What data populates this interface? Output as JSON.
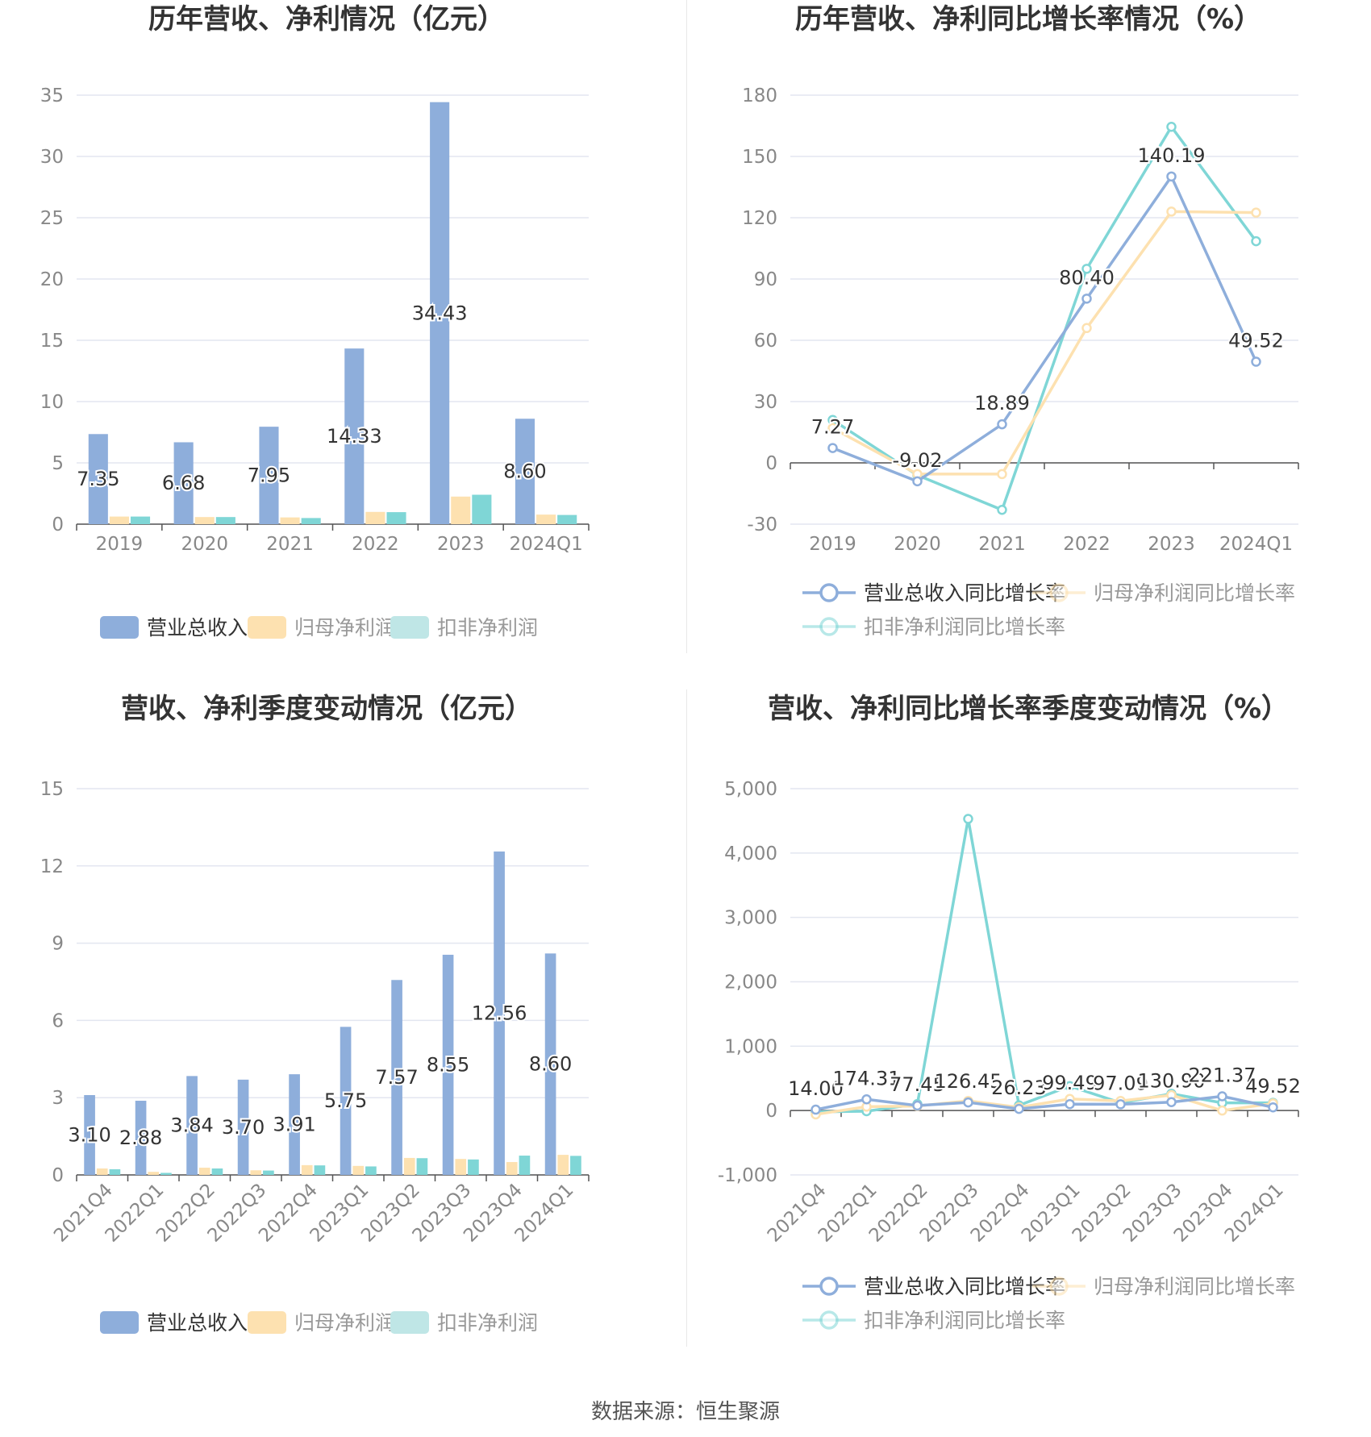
{
  "colors": {
    "revenue": "#8eaedb",
    "net_profit": "#fde1b0",
    "deducted": "#7fd6d6",
    "revenue_legend": "#8eaedb",
    "net_profit_legend": "#fde1b0",
    "deducted_legend": "#bfe6e6",
    "grid": "#e3e6f0",
    "axis": "#555555",
    "tick": "#888888",
    "label": "#333333"
  },
  "source": "数据来源：恒生聚源",
  "chart_data": [
    {
      "id": "annual_amount",
      "type": "bar",
      "title": "历年营收、净利情况（亿元）",
      "categories": [
        "2019",
        "2020",
        "2021",
        "2022",
        "2023",
        "2024Q1"
      ],
      "series": [
        {
          "name": "营业总收入",
          "values": [
            7.35,
            6.68,
            7.95,
            14.33,
            34.43,
            8.6
          ],
          "labels": [
            "7.35",
            "6.68",
            "7.95",
            "14.33",
            "34.43",
            "8.60"
          ]
        },
        {
          "name": "归母净利润",
          "values": [
            0.62,
            0.58,
            0.55,
            1.0,
            2.25,
            0.78
          ]
        },
        {
          "name": "扣非净利润",
          "values": [
            0.62,
            0.58,
            0.5,
            0.98,
            2.4,
            0.75
          ]
        }
      ],
      "ylim": [
        0,
        35
      ],
      "yticks": [
        "0",
        "5",
        "10",
        "15",
        "20",
        "25",
        "30",
        "35"
      ],
      "legend": "bottom",
      "grid": true
    },
    {
      "id": "annual_growth",
      "type": "line",
      "title": "历年营收、净利同比增长率情况（%）",
      "categories": [
        "2019",
        "2020",
        "2021",
        "2022",
        "2023",
        "2024Q1"
      ],
      "series": [
        {
          "name": "营业总收入同比增长率",
          "values": [
            7.27,
            -9.02,
            18.89,
            80.4,
            140.19,
            49.52
          ],
          "labels": [
            "7.27",
            "-9.02",
            "18.89",
            "80.40",
            "140.19",
            "49.52"
          ]
        },
        {
          "name": "归母净利润同比增长率",
          "values": [
            17,
            -5.5,
            -5.5,
            66,
            123,
            122.5
          ]
        },
        {
          "name": "扣非净利润同比增长率",
          "values": [
            21,
            -6,
            -23,
            95,
            164.5,
            108.5
          ]
        }
      ],
      "ylim": [
        -30,
        180
      ],
      "yticks": [
        "-30",
        "0",
        "30",
        "60",
        "90",
        "120",
        "150",
        "180"
      ],
      "legend": "bottom",
      "grid": true
    },
    {
      "id": "quarterly_amount",
      "type": "bar",
      "title": "营收、净利季度变动情况（亿元）",
      "categories": [
        "2021Q4",
        "2022Q1",
        "2022Q2",
        "2022Q3",
        "2022Q4",
        "2023Q1",
        "2023Q2",
        "2023Q3",
        "2023Q4",
        "2024Q1"
      ],
      "series": [
        {
          "name": "营业总收入",
          "values": [
            3.1,
            2.88,
            3.84,
            3.7,
            3.91,
            5.75,
            7.57,
            8.55,
            12.56,
            8.6
          ],
          "labels": [
            "3.10",
            "2.88",
            "3.84",
            "3.70",
            "3.91",
            "5.75",
            "7.57",
            "8.55",
            "12.56",
            "8.60"
          ]
        },
        {
          "name": "归母净利润",
          "values": [
            0.25,
            0.12,
            0.28,
            0.18,
            0.38,
            0.35,
            0.66,
            0.62,
            0.5,
            0.78
          ]
        },
        {
          "name": "扣非净利润",
          "values": [
            0.22,
            0.08,
            0.25,
            0.17,
            0.37,
            0.33,
            0.65,
            0.6,
            0.75,
            0.74
          ]
        }
      ],
      "ylim": [
        0,
        15
      ],
      "yticks": [
        "0",
        "3",
        "6",
        "9",
        "12",
        "15"
      ],
      "legend": "bottom",
      "grid": true
    },
    {
      "id": "quarterly_growth",
      "type": "line",
      "title": "营收、净利同比增长率季度变动情况（%）",
      "categories": [
        "2021Q4",
        "2022Q1",
        "2022Q2",
        "2022Q3",
        "2022Q4",
        "2023Q1",
        "2023Q2",
        "2023Q3",
        "2023Q4",
        "2024Q1"
      ],
      "series": [
        {
          "name": "营业总收入同比增长率",
          "values": [
            14.0,
            174.31,
            77.45,
            126.45,
            26.23,
            99.49,
            97.09,
            130.9,
            221.37,
            49.52
          ],
          "labels": [
            "14.00",
            "174.31",
            "77.45",
            "126.45",
            "26.23",
            "99.49",
            "97.09",
            "130.90",
            "221.37",
            "49.52"
          ]
        },
        {
          "name": "归母净利润同比增长率",
          "values": [
            -60,
            60,
            70,
            150,
            50,
            180,
            150,
            240,
            0,
            110
          ]
        },
        {
          "name": "扣非净利润同比增长率",
          "values": [
            -20,
            -10,
            100,
            4530,
            80,
            380,
            120,
            260,
            120,
            120
          ]
        }
      ],
      "ylim": [
        -1000,
        5000
      ],
      "yticks": [
        "-1,000",
        "0",
        "1,000",
        "2,000",
        "3,000",
        "4,000",
        "5,000"
      ],
      "legend": "bottom",
      "grid": true
    }
  ]
}
